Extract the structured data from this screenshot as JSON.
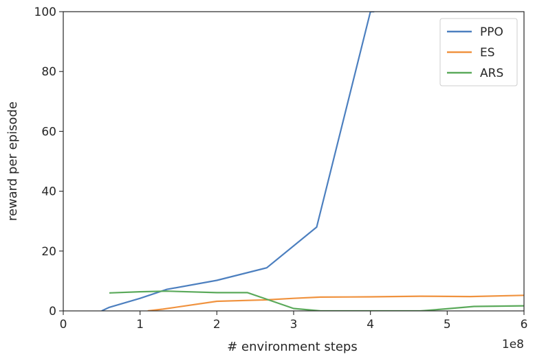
{
  "chart_data": {
    "type": "line",
    "xlabel": "# environment steps",
    "ylabel": "reward per episode",
    "x_offset_label": "1e8",
    "xlim": [
      0,
      6
    ],
    "ylim": [
      0,
      100
    ],
    "xticks": [
      0,
      1,
      2,
      3,
      4,
      5,
      6
    ],
    "yticks": [
      0,
      20,
      40,
      60,
      80,
      100
    ],
    "legend_position": "top-right",
    "series": [
      {
        "name": "PPO",
        "color": "#4c7fbf",
        "x": [
          0.5,
          0.6,
          1.0,
          1.35,
          2.0,
          2.65,
          3.3,
          4.0,
          4.05
        ],
        "y": [
          0.0,
          1.2,
          4.2,
          7.2,
          10.2,
          14.4,
          28.0,
          100.0,
          100.0
        ]
      },
      {
        "name": "ES",
        "color": "#f0923e",
        "x": [
          1.1,
          1.3,
          2.0,
          2.65,
          3.0,
          3.35,
          4.0,
          4.65,
          5.3,
          6.0
        ],
        "y": [
          0.0,
          0.6,
          3.2,
          3.7,
          4.2,
          4.6,
          4.7,
          4.9,
          4.8,
          5.2
        ]
      },
      {
        "name": "ARS",
        "color": "#5aa95a",
        "x": [
          0.6,
          1.0,
          1.35,
          2.0,
          2.4,
          3.0,
          3.35,
          4.65,
          4.7,
          5.0,
          5.35,
          6.0
        ],
        "y": [
          6.0,
          6.4,
          6.6,
          6.1,
          6.1,
          0.8,
          0.0,
          0.0,
          0.1,
          0.7,
          1.5,
          1.7
        ]
      }
    ]
  }
}
